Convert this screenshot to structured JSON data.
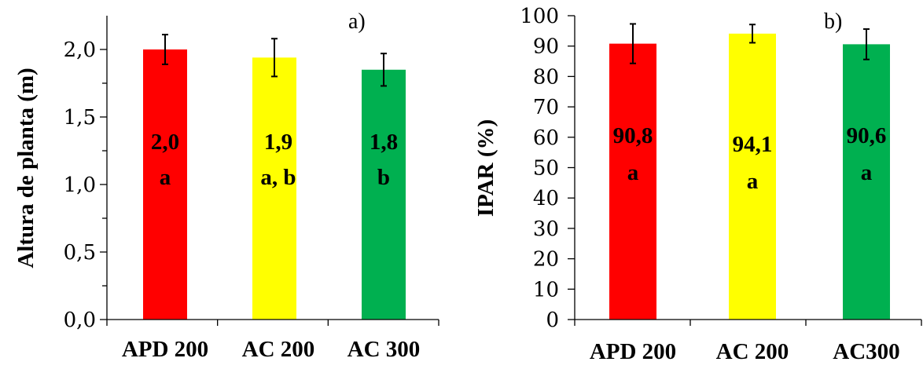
{
  "chart_data": [
    {
      "type": "bar",
      "panel_label": "a)",
      "ylabel": "Altura de planta (m)",
      "ylim": [
        0,
        2.25
      ],
      "yticks": [
        "0,0",
        "0,5",
        "1,0",
        "1,5",
        "2,0"
      ],
      "ytick_values": [
        0,
        0.5,
        1.0,
        1.5,
        2.0
      ],
      "minor_ticks": true,
      "categories": [
        "APD 200",
        "AC 200",
        "AC 300"
      ],
      "values": [
        2.0,
        1.94,
        1.85
      ],
      "errors": [
        0.11,
        0.14,
        0.12
      ],
      "value_labels": [
        "2,0",
        "1,9",
        "1,8"
      ],
      "letter_labels": [
        "a",
        "a, b",
        "b"
      ],
      "colors": [
        "#ff0000",
        "#ffff00",
        "#00b050"
      ]
    },
    {
      "type": "bar",
      "panel_label": "b)",
      "ylabel": "IPAR (%)",
      "ylim": [
        0,
        100
      ],
      "yticks": [
        "0",
        "10",
        "20",
        "30",
        "40",
        "50",
        "60",
        "70",
        "80",
        "90",
        "100"
      ],
      "ytick_values": [
        0,
        10,
        20,
        30,
        40,
        50,
        60,
        70,
        80,
        90,
        100
      ],
      "minor_ticks": false,
      "categories": [
        "APD 200",
        "AC 200",
        "AC300"
      ],
      "values": [
        90.8,
        94.1,
        90.6
      ],
      "errors": [
        6.5,
        3.0,
        5.0
      ],
      "value_labels": [
        "90,8",
        "94,1",
        "90,6"
      ],
      "letter_labels": [
        "a",
        "a",
        "a"
      ],
      "colors": [
        "#ff0000",
        "#ffff00",
        "#00b050"
      ]
    }
  ]
}
